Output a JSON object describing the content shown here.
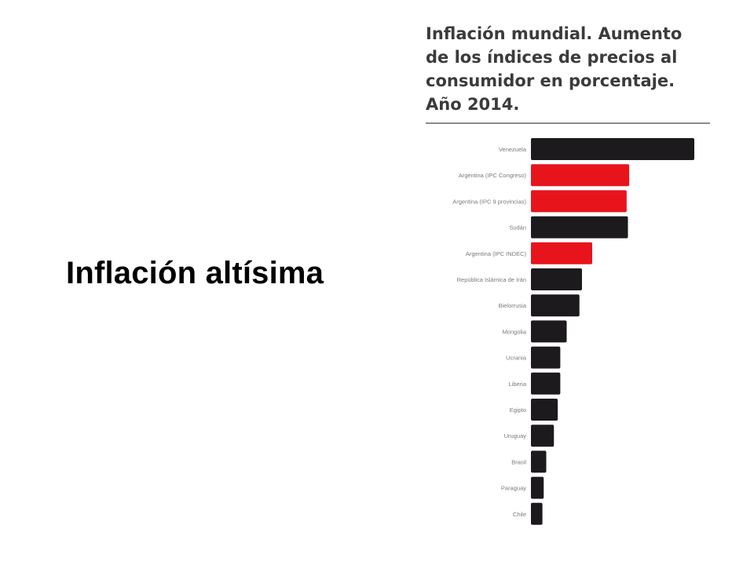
{
  "slide": {
    "title": "Inflación altísima"
  },
  "chart_data": {
    "type": "bar",
    "orientation": "horizontal",
    "title": "Inflación mundial. Aumento de los índices de precios al consumidor en porcentaje. Año 2014.",
    "xlabel": "",
    "ylabel": "",
    "grid": false,
    "categories": [
      "Venezuela",
      "Argentina (IPC Congreso)",
      "Argentina (IPC 9 provincias)",
      "Sudán",
      "Argentina (IPC INDEC)",
      "República Islámica de Irán",
      "Bielorrusia",
      "Mongolia",
      "Ucrania",
      "Liberia",
      "Egipto",
      "Uruguay",
      "Brasil",
      "Paraguay",
      "Chile"
    ],
    "values": [
      64,
      38.5,
      37.5,
      38,
      24,
      20,
      19,
      14,
      11.5,
      11.5,
      10.5,
      9,
      6,
      5,
      4.5
    ],
    "xlim": [
      0,
      64
    ],
    "colors": {
      "default": "#1c1a1c",
      "highlight": "#e8141c"
    },
    "highlight": [
      false,
      true,
      true,
      false,
      true,
      false,
      false,
      false,
      false,
      false,
      false,
      false,
      false,
      false,
      false
    ]
  }
}
